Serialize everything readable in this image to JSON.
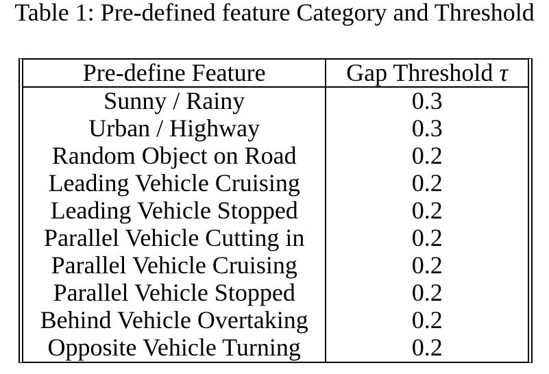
{
  "caption": "Table 1: Pre-defined feature Category and Threshold",
  "table": {
    "header": {
      "feature": "Pre-define Feature",
      "threshold_label": "Gap Threshold",
      "threshold_symbol": "τ"
    },
    "rows": [
      {
        "feature": "Sunny / Rainy",
        "threshold": "0.3"
      },
      {
        "feature": "Urban / Highway",
        "threshold": "0.3"
      },
      {
        "feature": "Random Object on Road",
        "threshold": "0.2"
      },
      {
        "feature": "Leading Vehicle Cruising",
        "threshold": "0.2"
      },
      {
        "feature": "Leading Vehicle Stopped",
        "threshold": "0.2"
      },
      {
        "feature": "Parallel Vehicle Cutting in",
        "threshold": "0.2"
      },
      {
        "feature": "Parallel Vehicle Cruising",
        "threshold": "0.2"
      },
      {
        "feature": "Parallel Vehicle Stopped",
        "threshold": "0.2"
      },
      {
        "feature": "Behind Vehicle Overtaking",
        "threshold": "0.2"
      },
      {
        "feature": "Opposite Vehicle Turning",
        "threshold": "0.2"
      }
    ]
  },
  "colors": {
    "background": "#ffffff",
    "text": "#000000",
    "border": "#000000"
  },
  "chart_data": {
    "type": "table",
    "title": "Table 1: Pre-defined feature Category and Threshold",
    "columns": [
      "Pre-define Feature",
      "Gap Threshold τ"
    ],
    "rows": [
      [
        "Sunny / Rainy",
        0.3
      ],
      [
        "Urban / Highway",
        0.3
      ],
      [
        "Random Object on Road",
        0.2
      ],
      [
        "Leading Vehicle Cruising",
        0.2
      ],
      [
        "Leading Vehicle Stopped",
        0.2
      ],
      [
        "Parallel Vehicle Cutting in",
        0.2
      ],
      [
        "Parallel Vehicle Cruising",
        0.2
      ],
      [
        "Parallel Vehicle Stopped",
        0.2
      ],
      [
        "Behind Vehicle Overtaking",
        0.2
      ],
      [
        "Opposite Vehicle Turning",
        0.2
      ]
    ]
  }
}
